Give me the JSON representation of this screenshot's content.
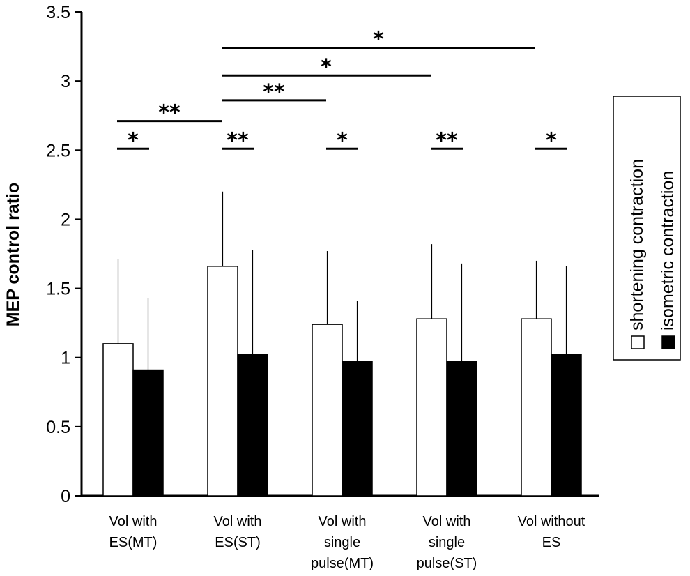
{
  "chart_data": {
    "type": "bar",
    "title": "",
    "xlabel": "",
    "ylabel": "MEP control ratio",
    "ylim": [
      0,
      3.5
    ],
    "yticks": [
      "0",
      "0.5",
      "1",
      "1.5",
      "2",
      "2.5",
      "3",
      "3.5"
    ],
    "grid": false,
    "legend_position": "right",
    "categories": [
      [
        "Vol with",
        "ES(MT)"
      ],
      [
        "Vol with",
        "ES(ST)"
      ],
      [
        "Vol with",
        "single",
        "pulse(MT)"
      ],
      [
        "Vol with",
        "single",
        "pulse(ST)"
      ],
      [
        "Vol without",
        "ES"
      ]
    ],
    "series": [
      {
        "name": "shortening contraction",
        "fill": "#ffffff",
        "values": [
          1.1,
          1.66,
          1.24,
          1.28,
          1.28
        ],
        "errors": [
          0.61,
          0.54,
          0.53,
          0.54,
          0.42
        ]
      },
      {
        "name": "isometric contraction",
        "fill": "#000000",
        "values": [
          0.91,
          1.02,
          0.97,
          0.97,
          1.02
        ],
        "errors": [
          0.52,
          0.76,
          0.44,
          0.71,
          0.64
        ]
      }
    ],
    "significance": {
      "within_group": [
        {
          "category": 0,
          "level": 2.51,
          "label": "*"
        },
        {
          "category": 1,
          "level": 2.51,
          "label": "**"
        },
        {
          "category": 2,
          "level": 2.51,
          "label": "*"
        },
        {
          "category": 3,
          "level": 2.51,
          "label": "**"
        },
        {
          "category": 4,
          "level": 2.51,
          "label": "*"
        }
      ],
      "between_groups": [
        {
          "from": 0,
          "to": 1,
          "level": 2.71,
          "label": "**"
        },
        {
          "from": 1,
          "to": 2,
          "level": 2.86,
          "label": "**"
        },
        {
          "from": 1,
          "to": 3,
          "level": 3.04,
          "label": "*"
        },
        {
          "from": 1,
          "to": 4,
          "level": 3.24,
          "label": "*"
        }
      ]
    }
  }
}
